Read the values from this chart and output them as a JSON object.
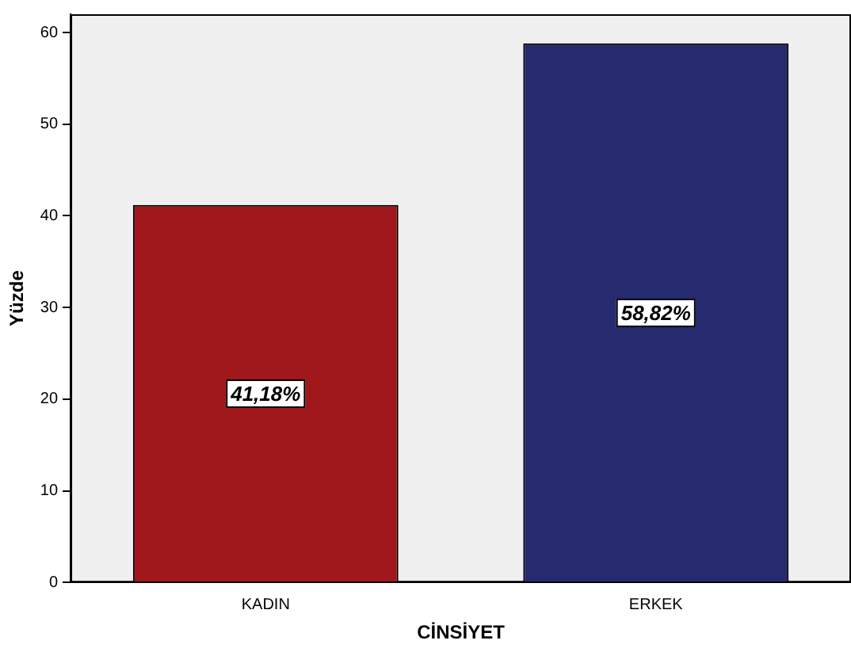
{
  "chart_data": {
    "type": "bar",
    "xlabel": "CİNSİYET",
    "ylabel": "Yüzde",
    "categories": [
      "KADIN",
      "ERKEK"
    ],
    "values": [
      41.18,
      58.82
    ],
    "colors": [
      "#a0181c",
      "#262a6e"
    ],
    "value_labels": [
      "41,18%",
      "58,82%"
    ],
    "ylim": [
      0,
      62
    ],
    "yticks": [
      0,
      10,
      20,
      30,
      40,
      50,
      60
    ],
    "grid": false,
    "legend": false
  }
}
